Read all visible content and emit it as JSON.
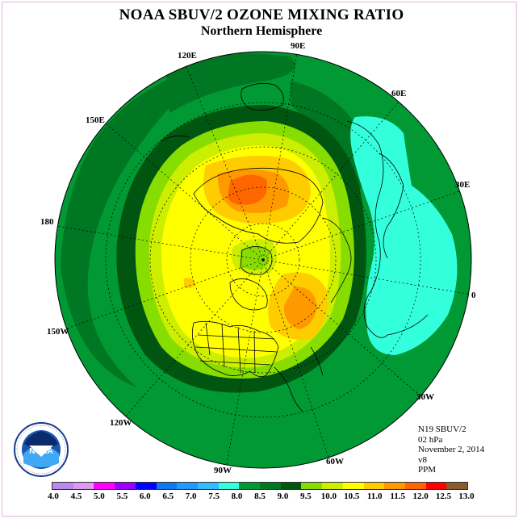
{
  "title": "NOAA SBUV/2 OZONE MIXING RATIO",
  "subtitle": "Northern Hemisphere",
  "longitude_labels": {
    "e120": "120E",
    "e90": "90E",
    "e60": "60E",
    "e30": "30E",
    "zero": "0",
    "w30": "30W",
    "w60": "60W",
    "w90": "90W",
    "w120": "120W",
    "w150": "150W",
    "d180": "180",
    "e150": "150E"
  },
  "info": {
    "satellite": "N19 SBUV/2",
    "level": "02 hPa",
    "date": "November 2, 2014",
    "version": "v8",
    "units": "PPM"
  },
  "logo": {
    "text": "NOAA",
    "ring_text": "NATIONAL OCEANIC AND ATMOSPHERIC ADMINISTRATION · U.S. DEPARTMENT OF COMMERCE"
  },
  "colorbar": {
    "ticks": [
      "4.0",
      "4.5",
      "5.0",
      "5.5",
      "6.0",
      "6.5",
      "7.0",
      "7.5",
      "8.0",
      "8.5",
      "9.0",
      "9.5",
      "10.0",
      "10.5",
      "11.0",
      "11.5",
      "12.0",
      "12.5",
      "13.0"
    ],
    "colors": [
      "#bb88ee",
      "#dd99ee",
      "#ff00ff",
      "#9900ff",
      "#0000ff",
      "#1177ee",
      "#2299ff",
      "#33bbff",
      "#33ffdd",
      "#009933",
      "#007722",
      "#005511",
      "#88dd00",
      "#ccee00",
      "#ffff00",
      "#ffcc00",
      "#ff9900",
      "#ff6600",
      "#ff0000",
      "#8b5a2b"
    ]
  }
}
